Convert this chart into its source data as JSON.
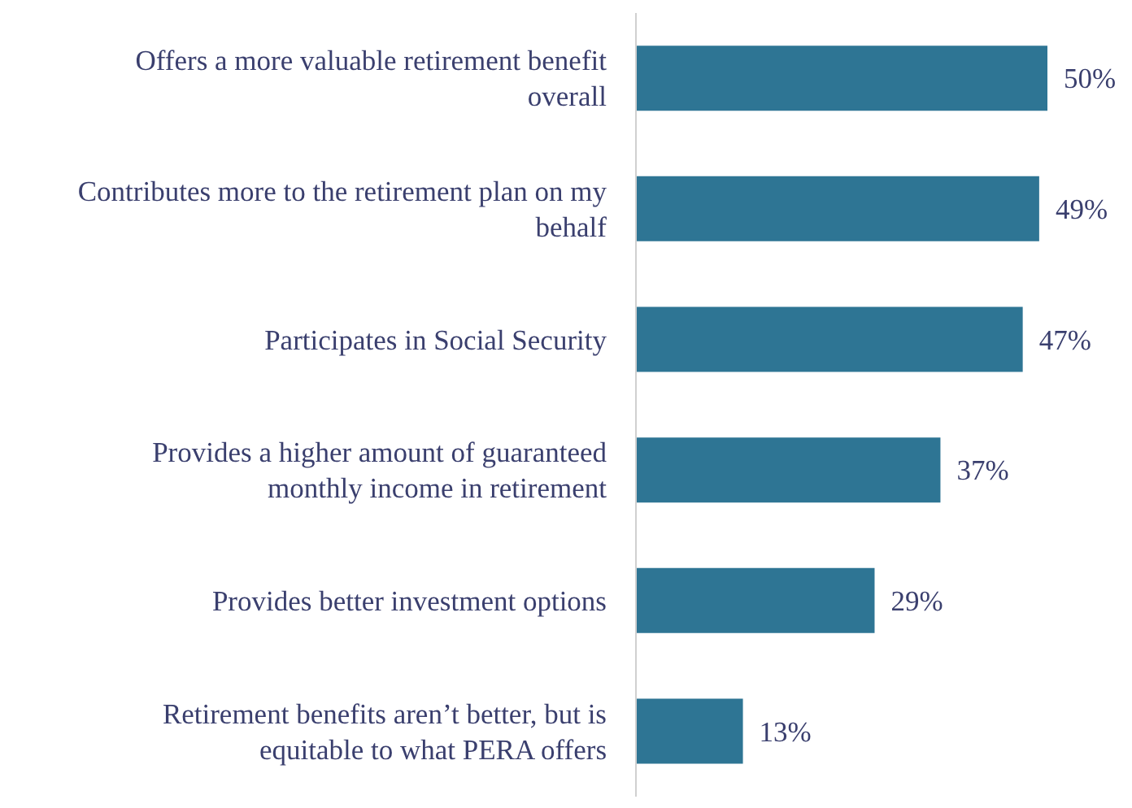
{
  "chart_data": {
    "type": "bar",
    "orientation": "horizontal",
    "categories": [
      "Offers a more valuable retirement benefit overall",
      "Contributes more to the retirement plan on my behalf",
      "Participates in Social Security",
      "Provides a higher amount of guaranteed monthly income in retirement",
      "Provides better investment options",
      "Retirement benefits aren’t better, but is equitable to what PERA offers"
    ],
    "values": [
      50,
      49,
      47,
      37,
      29,
      13
    ],
    "value_labels": [
      "50%",
      "49%",
      "47%",
      "37%",
      "29%",
      "13%"
    ],
    "color": "#2e7594",
    "grid": false,
    "legend": false
  }
}
